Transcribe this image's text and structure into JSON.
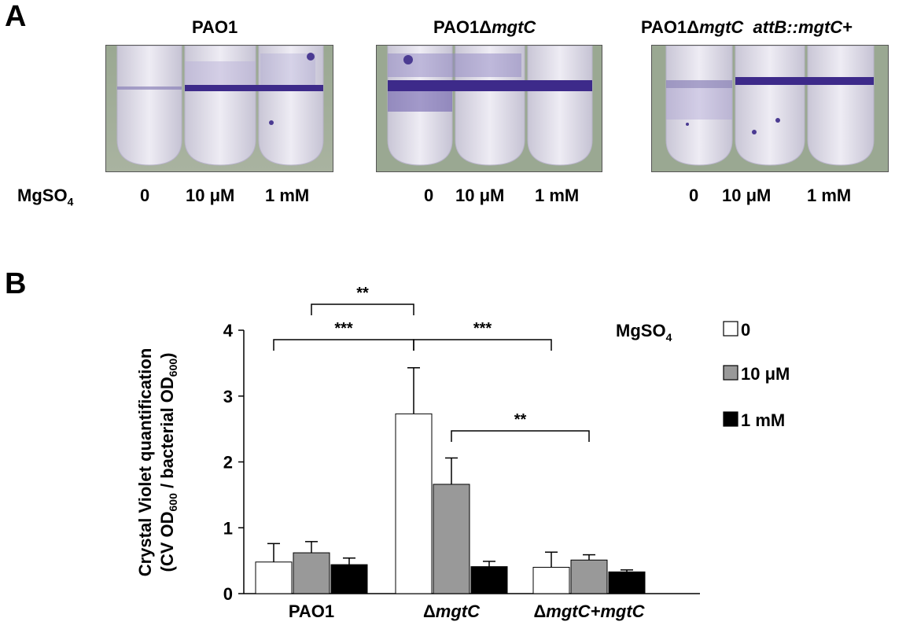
{
  "panel_a": {
    "letter": "A",
    "strains": [
      {
        "prefix": "PAO1",
        "italic": "",
        "suffix": ""
      },
      {
        "prefix": "PAO1Δ",
        "italic": "mgtC",
        "suffix": ""
      },
      {
        "prefix": "PAO1Δ",
        "italic": "mgtC  attB::mgtC",
        "suffix": "+"
      }
    ],
    "mg_label": "MgSO",
    "mg_sub": "4",
    "concentrations": [
      "0",
      "10 μM",
      "1 mM"
    ]
  },
  "panel_b": {
    "letter": "B"
  },
  "chart_data": {
    "type": "bar",
    "categories": [
      "PAO1",
      "ΔmgtC",
      "ΔmgtC+mgtC"
    ],
    "category_labels": [
      {
        "plain": "PAO1",
        "italic": ""
      },
      {
        "plain": "Δ",
        "italic": "mgtC"
      },
      {
        "plain": "Δ",
        "italic": "mgtC+mgtC"
      }
    ],
    "series": [
      {
        "name": "0",
        "color": "#ffffff",
        "values": [
          0.48,
          2.73,
          0.4
        ],
        "errors": [
          0.28,
          0.7,
          0.23
        ]
      },
      {
        "name": "10 μM",
        "color": "#999999",
        "values": [
          0.62,
          1.66,
          0.51
        ],
        "errors": [
          0.17,
          0.4,
          0.08
        ]
      },
      {
        "name": "1 mM",
        "color": "#000000",
        "values": [
          0.44,
          0.41,
          0.33
        ],
        "errors": [
          0.1,
          0.08,
          0.03
        ]
      }
    ],
    "ylabel_line1": "Crystal Violet quantification",
    "ylabel_line2_parts": [
      "(CV OD",
      "600",
      " / bacterial OD",
      "600",
      ")"
    ],
    "ylim": [
      0,
      4
    ],
    "yticks": [
      0,
      1,
      2,
      3,
      4
    ],
    "legend_title": "MgSO",
    "legend_title_sub": "4",
    "legend_position": "right",
    "significance": [
      {
        "label": "**",
        "from": [
          0,
          1
        ],
        "to": [
          1,
          0
        ]
      },
      {
        "label": "***",
        "from": [
          0,
          0
        ],
        "to": [
          1,
          0
        ]
      },
      {
        "label": "***",
        "from": [
          1,
          0
        ],
        "to": [
          2,
          0
        ]
      },
      {
        "label": "**",
        "from": [
          1,
          1
        ],
        "to": [
          2,
          1
        ]
      }
    ]
  }
}
